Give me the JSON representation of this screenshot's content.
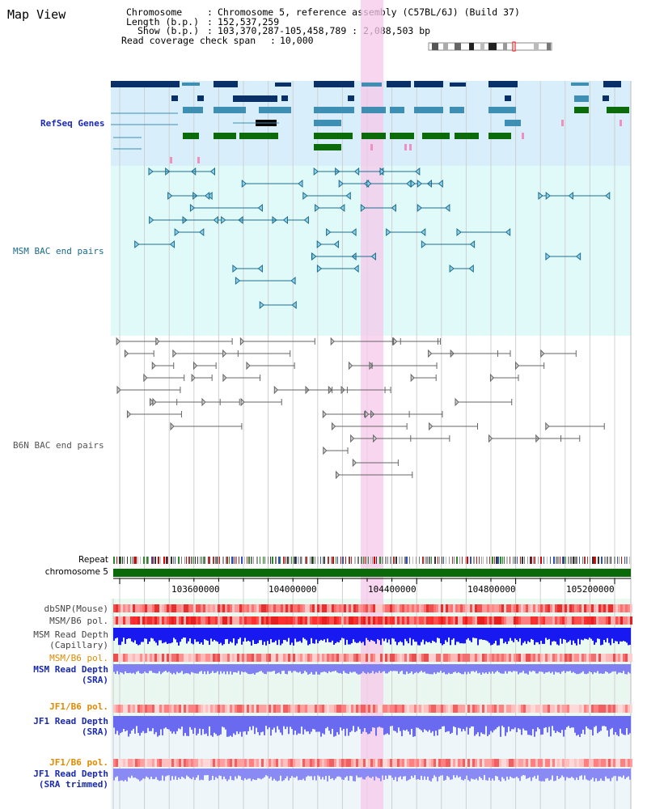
{
  "title": "Map View",
  "info": {
    "chromosome_label": "Chromosome",
    "chromosome_value": "Chromosome 5, reference assembly (C57BL/6J) (Build 37)",
    "length_label": "Length (b.p.)",
    "length_value": "152,537,259",
    "show_label": "Show (b.p.)",
    "show_value": "103,370,287-105,458,789 : 2,088,503 bp",
    "coverage_label": "Read coverage check span",
    "coverage_value": "10,000"
  },
  "tracks": {
    "refseq": "RefSeq Genes",
    "msm_bac": "MSM BAC end pairs",
    "b6n_bac": "B6N BAC end pairs",
    "repeat": "Repeat",
    "chromosome": "chromosome 5",
    "dbsnp": "dbSNP(Mouse)",
    "msm_b6_pol_1": "MSM/B6 pol.",
    "msm_depth_cap_1": "MSM Read Depth",
    "msm_depth_cap_2": "(Capillary)",
    "msm_b6_pol_2": "MSM/B6 pol.",
    "msm_depth_sra_1": "MSM Read Depth",
    "msm_depth_sra_2": "(SRA)",
    "jf1_b6_pol_1": "JF1/B6 pol.",
    "jf1_depth_sra_1": "JF1 Read Depth",
    "jf1_depth_sra_2": "(SRA)",
    "jf1_b6_pol_2": "JF1/B6 pol.",
    "jf1_depth_trim_1": "JF1 Read Depth",
    "jf1_depth_trim_2": "(SRA trimmed)"
  },
  "axis": {
    "ticks": [
      "103600000",
      "104000000",
      "104400000",
      "104800000",
      "105200000"
    ]
  },
  "colors": {
    "refseq_dark": "#0a3068",
    "refseq_mid": "#3f8fb5",
    "refseq_green": "#0b6b0b",
    "refseq_bg": "#d8eefa",
    "msm_bg": "#e0fafa",
    "b6n_bg": "#e6fafa",
    "highlight": "#f8d4ee",
    "msm_line": "#1f6d8c",
    "chrom_bar": "#0a6a0a",
    "depth_blue": "#1010ee",
    "depth_light": "#8080f0"
  }
}
